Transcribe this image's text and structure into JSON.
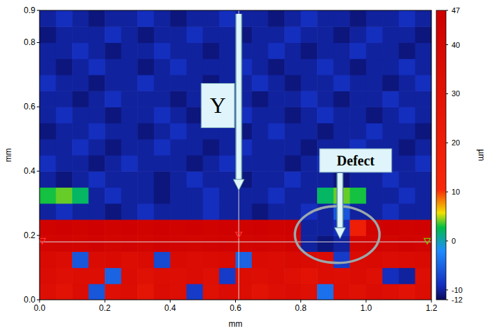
{
  "chart_data": {
    "type": "heatmap",
    "xlabel": "mm",
    "ylabel": "mm",
    "xlim": [
      0,
      1.2
    ],
    "ylim": [
      0,
      0.9
    ],
    "xticks": [
      {
        "value": 0,
        "label": "0.0"
      },
      0.2,
      0.4,
      0.6,
      0.8,
      {
        "value": 1,
        "label": "1.0"
      },
      1.2
    ],
    "yticks": [
      {
        "value": 0,
        "label": "0.0"
      },
      0.2,
      0.4,
      0.6,
      0.8,
      0.9
    ],
    "x": [
      0.025,
      0.075,
      0.125,
      0.175,
      0.225,
      0.275,
      0.325,
      0.375,
      0.425,
      0.475,
      0.525,
      0.575,
      0.625,
      0.675,
      0.725,
      0.775,
      0.825,
      0.875,
      0.925,
      0.975,
      1.025,
      1.075,
      1.125,
      1.175
    ],
    "y": [
      0.025,
      0.075,
      0.125,
      0.175,
      0.225,
      0.275,
      0.325,
      0.375,
      0.425,
      0.475,
      0.525,
      0.575,
      0.625,
      0.675,
      0.725,
      0.775,
      0.825,
      0.875
    ],
    "z": [
      [
        34,
        30,
        36,
        -6,
        33,
        35,
        28,
        36,
        34,
        -8,
        32,
        36,
        35,
        30,
        34,
        36,
        33,
        -4,
        35,
        32,
        36,
        34,
        30,
        35
      ],
      [
        36,
        33,
        35,
        34,
        -5,
        36,
        32,
        35,
        34,
        36,
        33,
        -8,
        35,
        34,
        36,
        33,
        30,
        35,
        34,
        36,
        33,
        -9,
        -10,
        34
      ],
      [
        38,
        36,
        -6,
        37,
        38,
        35,
        37,
        -7,
        38,
        36,
        37,
        38,
        -5,
        37,
        36,
        38,
        37,
        36,
        -8,
        37,
        38,
        36,
        37,
        38
      ],
      [
        42,
        43,
        42,
        44,
        42,
        43,
        42,
        44,
        43,
        42,
        43,
        44,
        42,
        43,
        42,
        44,
        -10,
        -11,
        -10,
        42,
        43,
        42,
        44,
        43
      ],
      [
        44,
        45,
        44,
        45,
        44,
        45,
        44,
        45,
        44,
        45,
        44,
        45,
        44,
        45,
        44,
        45,
        -10,
        -10,
        -9,
        20,
        44,
        45,
        44,
        45
      ],
      [
        -10,
        -9,
        -10,
        -10,
        -11,
        -10,
        -9,
        -10,
        -10,
        -10,
        -9,
        -10,
        -10,
        -11,
        -10,
        -10,
        -9,
        -10,
        -6,
        -10,
        -10,
        -9,
        -10,
        -10
      ],
      [
        3,
        4,
        2,
        -10,
        -9,
        -10,
        -10,
        -11,
        -10,
        -10,
        -9,
        -10,
        -10,
        -10,
        -9,
        -10,
        -10,
        2,
        4,
        3,
        -10,
        -10,
        -9,
        -10
      ],
      [
        -10,
        -11,
        -10,
        -9,
        -10,
        -10,
        -10,
        -11,
        -10,
        -9,
        -10,
        -10,
        -11,
        -10,
        -10,
        -9,
        -10,
        -10,
        -11,
        -10,
        -10,
        -9,
        -10,
        -10
      ],
      [
        -9,
        -10,
        -10,
        -11,
        -10,
        -9,
        -10,
        -10,
        -10,
        -11,
        -10,
        -9,
        -10,
        -10,
        -10,
        -11,
        -10,
        -9,
        -10,
        -10,
        -11,
        -10,
        -10,
        -9
      ],
      [
        -10,
        -10,
        -9,
        -10,
        -11,
        -10,
        -10,
        -9,
        -10,
        -10,
        -11,
        -10,
        -9,
        -10,
        -10,
        -10,
        -11,
        -10,
        -10,
        -9,
        -10,
        -10,
        -11,
        -10
      ],
      [
        -11,
        -10,
        -10,
        -9,
        -10,
        -10,
        -11,
        -10,
        -9,
        -10,
        -10,
        -10,
        -11,
        -10,
        -9,
        -10,
        -10,
        -11,
        -10,
        -10,
        -9,
        -10,
        -10,
        -11
      ],
      [
        -10,
        -9,
        -10,
        -10,
        -11,
        -10,
        -10,
        -9,
        -10,
        -11,
        -10,
        -10,
        -9,
        -10,
        -10,
        -11,
        -10,
        -9,
        -10,
        -10,
        -11,
        -10,
        -9,
        -10
      ],
      [
        -10,
        -10,
        -11,
        -10,
        -9,
        -10,
        -10,
        -10,
        -11,
        -10,
        -9,
        -10,
        -10,
        -11,
        -10,
        -10,
        -9,
        -10,
        -11,
        -10,
        -10,
        -9,
        -10,
        -10
      ],
      [
        -9,
        -10,
        -10,
        -11,
        -10,
        -10,
        -9,
        -10,
        -10,
        -10,
        -11,
        -10,
        -10,
        -9,
        -10,
        -11,
        -10,
        -10,
        -9,
        -10,
        -10,
        -11,
        -10,
        -9
      ],
      [
        -10,
        -11,
        -10,
        -9,
        -10,
        -10,
        -11,
        -10,
        -9,
        -10,
        -10,
        -10,
        -9,
        -10,
        -11,
        -10,
        -10,
        -9,
        -10,
        -11,
        -10,
        -10,
        -9,
        -10
      ],
      [
        -10,
        -10,
        -9,
        -10,
        -11,
        -10,
        -10,
        -9,
        -10,
        -10,
        -11,
        -10,
        -10,
        -10,
        -9,
        -10,
        -11,
        -10,
        -10,
        -9,
        -10,
        -10,
        -11,
        -10
      ],
      [
        -11,
        -10,
        -10,
        -10,
        -9,
        -10,
        -11,
        -10,
        -10,
        -9,
        -10,
        -10,
        -11,
        -10,
        -10,
        -9,
        -10,
        -10,
        -11,
        -10,
        -9,
        -10,
        -10,
        -11
      ],
      [
        -10,
        -9,
        -10,
        -11,
        -10,
        -10,
        -9,
        -10,
        -11,
        -10,
        -10,
        -9,
        -10,
        -10,
        -11,
        -10,
        -9,
        -10,
        -10,
        -11,
        -10,
        -10,
        -9,
        -10
      ]
    ],
    "colorbar": {
      "label": "µm",
      "range": [
        -12,
        47
      ],
      "ticks": [
        -12,
        -10,
        0,
        10,
        20,
        30,
        40,
        47
      ]
    },
    "cursor": {
      "x": 0.61,
      "y": 0.18
    },
    "annotations": [
      {
        "text": "Y",
        "x": 0.546,
        "y": 0.604,
        "arrow_x": 0.61,
        "arrow_y": 0.34
      },
      {
        "text": "Defect",
        "x": 0.968,
        "y": 0.433,
        "arrow_x": 0.92,
        "arrow_y": 0.207
      }
    ]
  }
}
